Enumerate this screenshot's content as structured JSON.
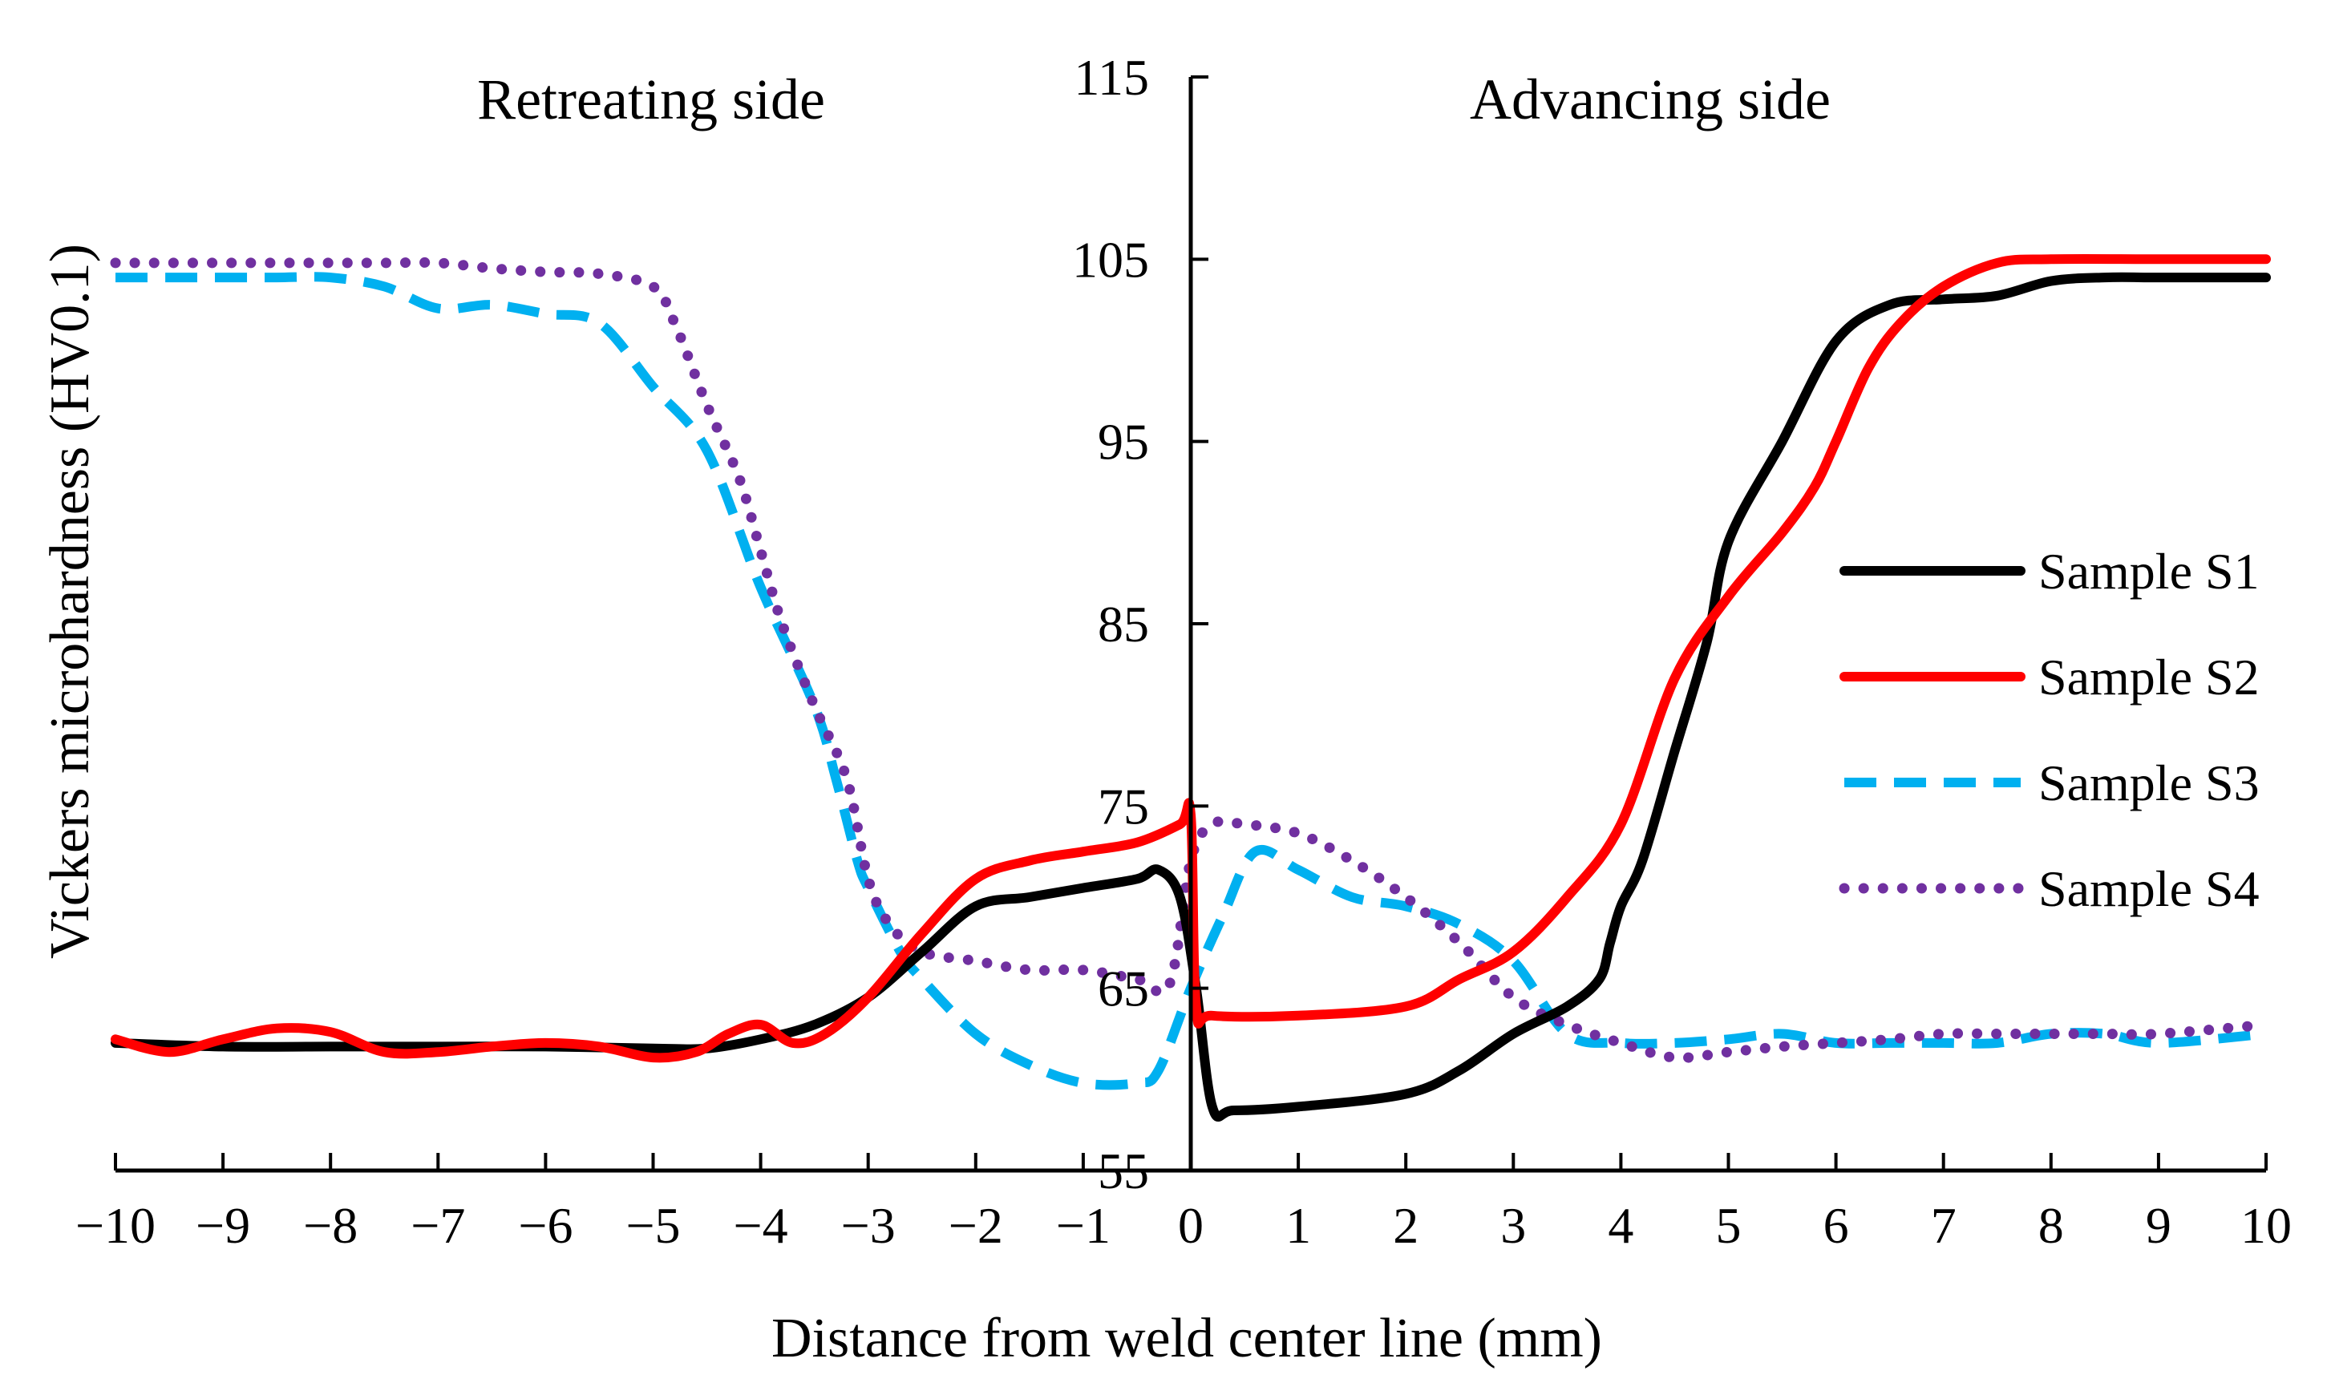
{
  "chart_data": {
    "type": "line",
    "title": "",
    "xlabel": "Distance from weld center line (mm)",
    "ylabel": "Vickers microhardness (HV0.1)",
    "xlim": [
      -10,
      10
    ],
    "ylim": [
      55,
      115
    ],
    "xticks": [
      -10,
      -9,
      -8,
      -7,
      -6,
      -5,
      -4,
      -3,
      -2,
      -1,
      0,
      1,
      2,
      3,
      4,
      5,
      6,
      7,
      8,
      9,
      10
    ],
    "xtick_labels": [
      "−10",
      "−9",
      "−8",
      "−7",
      "−6",
      "−5",
      "−4",
      "−3",
      "−2",
      "−1",
      "0",
      "1",
      "2",
      "3",
      "4",
      "5",
      "6",
      "7",
      "8",
      "9",
      "10"
    ],
    "yticks": [
      55,
      65,
      75,
      85,
      95,
      105,
      115
    ],
    "ytick_labels": [
      "55",
      "65",
      "75",
      "85",
      "95",
      "105",
      "115"
    ],
    "annotations": {
      "retreating": "Retreating side",
      "advancing": "Advancing side"
    },
    "legend_position": "right",
    "series": [
      {
        "name": "Sample S1",
        "color": "#000000",
        "style": "solid",
        "x": [
          -10,
          -9,
          -8,
          -7,
          -6,
          -5,
          -4.5,
          -4,
          -3.5,
          -3,
          -2.5,
          -2,
          -1.5,
          -1,
          -0.5,
          -0.3,
          -0.1,
          0.05,
          0.2,
          0.4,
          1,
          2,
          2.5,
          3,
          3.5,
          3.8,
          3.9,
          4,
          4.2,
          4.5,
          4.8,
          5,
          5.5,
          6,
          6.5,
          7,
          7.5,
          8,
          8.5,
          9,
          10
        ],
        "y": [
          62,
          61.8,
          61.8,
          61.8,
          61.8,
          61.7,
          61.7,
          62.2,
          63,
          64.5,
          67,
          69.5,
          70,
          70.5,
          71,
          71.5,
          70,
          65,
          58.5,
          58.3,
          58.5,
          59.2,
          60.5,
          62.5,
          64,
          65.5,
          67.5,
          69.5,
          72,
          78,
          84,
          89.5,
          95,
          100.5,
          102.5,
          102.8,
          103,
          103.8,
          104,
          104,
          104
        ]
      },
      {
        "name": "Sample S2",
        "color": "#ff0000",
        "style": "solid",
        "x": [
          -10,
          -9.5,
          -9,
          -8.5,
          -8,
          -7.5,
          -7,
          -6.5,
          -6,
          -5.5,
          -5,
          -4.6,
          -4.3,
          -4,
          -3.7,
          -3.4,
          -3,
          -2.5,
          -2,
          -1.5,
          -1,
          -0.5,
          -0.1,
          0,
          0.05,
          0.2,
          1,
          2,
          2.5,
          3,
          3.5,
          4,
          4.5,
          5,
          5.5,
          5.8,
          6,
          6.3,
          6.6,
          7,
          7.5,
          8,
          9,
          10
        ],
        "y": [
          62.2,
          61.5,
          62.2,
          62.8,
          62.6,
          61.5,
          61.5,
          61.8,
          62,
          61.8,
          61.2,
          61.5,
          62.5,
          63,
          62,
          62.5,
          64.5,
          68,
          71,
          72,
          72.5,
          73,
          74,
          74.5,
          64,
          63.5,
          63.5,
          64,
          65.5,
          67,
          70,
          74,
          82,
          86.5,
          90,
          92.5,
          95,
          99,
          101.5,
          103.5,
          104.8,
          105,
          105,
          105
        ]
      },
      {
        "name": "Sample S3",
        "color": "#00b0f0",
        "style": "dashed",
        "x": [
          -10,
          -9.5,
          -9,
          -8.5,
          -8,
          -7.5,
          -7,
          -6.5,
          -6,
          -5.5,
          -5,
          -4.5,
          -4,
          -3.5,
          -3.3,
          -3.1,
          -3,
          -2.7,
          -2.5,
          -2,
          -1.5,
          -1,
          -0.5,
          -0.3,
          0,
          0.3,
          0.6,
          1,
          1.5,
          2,
          2.5,
          3,
          3.5,
          4,
          4.5,
          5,
          5.5,
          6,
          6.5,
          7,
          7.5,
          8,
          8.5,
          9,
          10
        ],
        "y": [
          104,
          104,
          104,
          104,
          104,
          103.5,
          102.3,
          102.5,
          102,
          101.5,
          98,
          94.5,
          87,
          80.5,
          76.5,
          72,
          70.5,
          67,
          65.5,
          62.5,
          60.8,
          59.8,
          59.8,
          60.5,
          65,
          69,
          72.5,
          71.5,
          70,
          69.5,
          68.5,
          66.5,
          62.5,
          62,
          62,
          62.2,
          62.5,
          62,
          62,
          62,
          62,
          62.5,
          62.5,
          62,
          62.5
        ]
      },
      {
        "name": "Sample S4",
        "color": "#7030a0",
        "style": "dotted",
        "x": [
          -10,
          -9.5,
          -9,
          -8.5,
          -8,
          -7.5,
          -7,
          -6.5,
          -6,
          -5.5,
          -5,
          -4.8,
          -4.5,
          -4.2,
          -4,
          -3.8,
          -3.5,
          -3.2,
          -3,
          -2.8,
          -2.5,
          -2,
          -1.5,
          -1,
          -0.5,
          -0.2,
          0,
          0.2,
          0.5,
          1,
          1.5,
          2,
          2.5,
          3,
          3.5,
          4,
          4.5,
          5,
          5.5,
          6,
          6.5,
          7,
          7.5,
          8,
          8.5,
          9,
          10
        ],
        "y": [
          104.8,
          104.8,
          104.8,
          104.8,
          104.8,
          104.8,
          104.8,
          104.5,
          104.3,
          104.2,
          103.5,
          101.5,
          97,
          93,
          89,
          85,
          80.5,
          76.5,
          71,
          68.5,
          67,
          66.5,
          66,
          66,
          65.5,
          65.2,
          72,
          74,
          74,
          73.5,
          72,
          70,
          67.5,
          64.5,
          63,
          62,
          61.2,
          61.5,
          61.8,
          62,
          62.2,
          62.5,
          62.5,
          62.5,
          62.5,
          62.5,
          63
        ]
      }
    ]
  }
}
